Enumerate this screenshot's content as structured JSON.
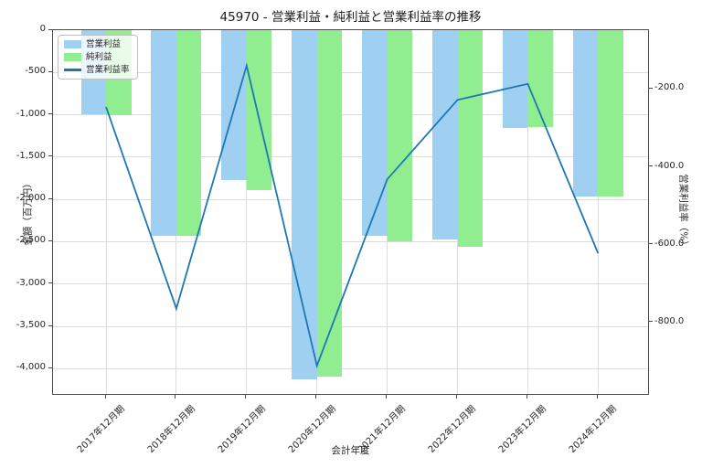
{
  "title": "45970 - 営業利益・純利益と営業利益率の推移",
  "chart_data": {
    "type": "bar",
    "subtype": "grouped-bar-with-line-dual-axis",
    "categories": [
      "2017年12月期",
      "2018年12月期",
      "2019年12月期",
      "2020年12月期",
      "2021年12月期",
      "2022年12月期",
      "2023年12月期",
      "2024年12月期"
    ],
    "series": [
      {
        "name": "営業利益",
        "type": "bar",
        "axis": "left",
        "color": "#9FD0F2",
        "values": [
          -995,
          -2430,
          -1770,
          -4120,
          -2430,
          -2470,
          -1150,
          -1960
        ]
      },
      {
        "name": "純利益",
        "type": "bar",
        "axis": "left",
        "color": "#90EE90",
        "values": [
          -1005,
          -2430,
          -1890,
          -4090,
          -2490,
          -2560,
          -1140,
          -1960
        ]
      },
      {
        "name": "営業利益率",
        "type": "line",
        "axis": "right",
        "color": "#1F77B4",
        "values": [
          -246,
          -764,
          -140,
          -911,
          -432,
          -228,
          -187,
          -622
        ]
      }
    ],
    "xlabel": "会計年度",
    "ylabel_left": "金額（百万円）",
    "ylabel_right": "営業利益率（%）",
    "ylim_left": [
      -4320,
      0
    ],
    "ylim_right": [
      -988,
      -49
    ],
    "yticks_left": {
      "values": [
        0,
        -500,
        -1000,
        -1500,
        -2000,
        -2500,
        -3000,
        -3500,
        -4000
      ],
      "labels": [
        "0",
        "-500",
        "-1,000",
        "-1,500",
        "-2,000",
        "-2,500",
        "-3,000",
        "-3,500",
        "-4,000"
      ]
    },
    "yticks_right": {
      "values": [
        -200,
        -400,
        -600,
        -800
      ],
      "labels": [
        "-200.0",
        "-400.0",
        "-600.0",
        "-800.0"
      ]
    },
    "grid": true,
    "legend_position": "upper-left",
    "colors": {
      "bar_blue": "#9FD0F2",
      "bar_green": "#90EE90",
      "line_blue": "#1F77B4",
      "gridline": "#DCDCDC",
      "spine": "#4A4A4A"
    }
  }
}
